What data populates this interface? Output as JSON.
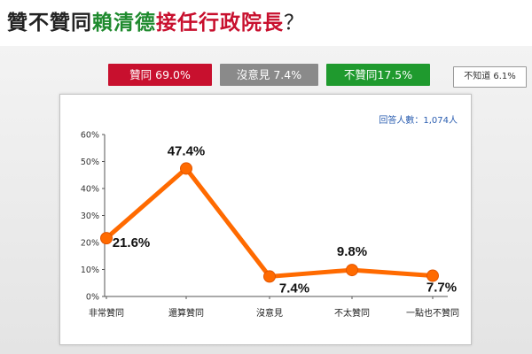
{
  "title": {
    "segments": [
      "贊不贊同",
      "賴清德",
      "接任行政院長",
      "？"
    ]
  },
  "badges": [
    {
      "label": "贊同 69.0%",
      "color": "#c8102e"
    },
    {
      "label": "沒意見 7.4%",
      "color": "#8a8a8a"
    },
    {
      "label": "不贊同17.5%",
      "color": "#1f9a2e"
    },
    {
      "label": "不知道 6.1%",
      "color": "#ffffff"
    }
  ],
  "respondents_label": "回答人數：1,074人",
  "chart_data": {
    "type": "line",
    "categories": [
      "非常贊同",
      "還算贊同",
      "沒意見",
      "不太贊同",
      "一點也不贊同"
    ],
    "series": [
      {
        "values": [
          21.6,
          47.4,
          7.4,
          9.8,
          7.7
        ],
        "color": "#ff6a00"
      }
    ],
    "data_labels": [
      "21.6%",
      "47.4%",
      "7.4%",
      "9.8%",
      "7.7%"
    ],
    "yticks": [
      "0%",
      "10%",
      "20%",
      "30%",
      "40%",
      "50%",
      "60%"
    ],
    "ylim": [
      0,
      60
    ],
    "grid": false
  }
}
